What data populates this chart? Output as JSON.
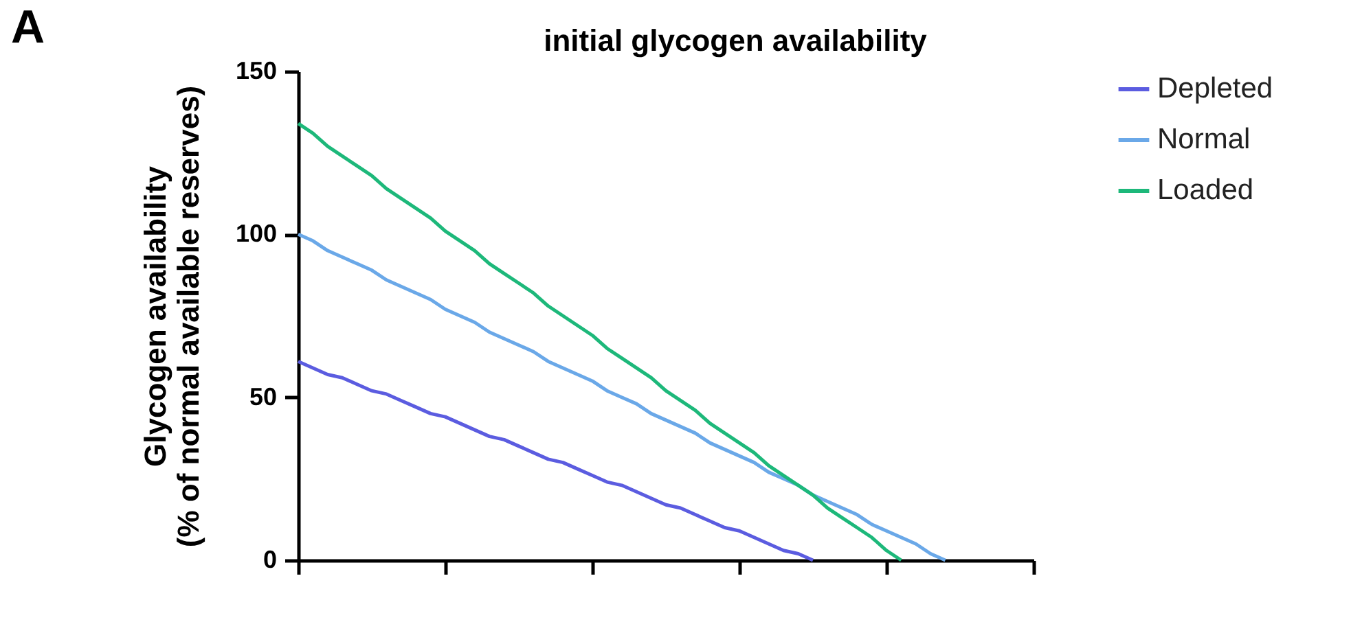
{
  "chart_data": {
    "type": "line",
    "title": "initial glycogen availability",
    "ylabel": "Glycogen availability\n(% of normal available reserves)",
    "annotations": [
      "A"
    ],
    "categories": [
      null,
      null,
      null,
      null,
      null,
      null,
      null,
      null,
      null,
      null,
      null,
      null,
      null,
      null,
      null,
      null,
      null,
      null,
      null,
      null,
      null,
      null,
      null,
      null,
      null,
      null,
      null,
      null,
      null,
      null,
      null,
      null,
      null,
      null,
      null,
      null,
      null,
      null,
      null,
      null,
      null,
      null,
      null,
      null,
      null,
      null,
      null,
      null,
      null,
      null,
      null
    ],
    "ylim": [
      0,
      150
    ],
    "yticks": [
      0,
      50,
      100,
      150
    ],
    "tick_labels": "y",
    "grid": false,
    "legend": "top right",
    "marker": "none",
    "line_style": "solid",
    "series": [
      {
        "name": "Depleted",
        "color": "#5b5ce0",
        "values": [
          61,
          59,
          57,
          56,
          54,
          52,
          51,
          49,
          47,
          45,
          44,
          42,
          40,
          38,
          37,
          35,
          33,
          31,
          30,
          28,
          26,
          24,
          23,
          21,
          19,
          17,
          16,
          14,
          12,
          10,
          9,
          7,
          5,
          3,
          2,
          0,
          null,
          null,
          null,
          null,
          null,
          null,
          null,
          null,
          null,
          null,
          null,
          null,
          null,
          null,
          null
        ]
      },
      {
        "name": "Normal",
        "color": "#6aa8e8",
        "values": [
          100,
          98,
          95,
          93,
          91,
          89,
          86,
          84,
          82,
          80,
          77,
          75,
          73,
          70,
          68,
          66,
          64,
          61,
          59,
          57,
          55,
          52,
          50,
          48,
          45,
          43,
          41,
          39,
          36,
          34,
          32,
          30,
          27,
          25,
          23,
          20,
          18,
          16,
          14,
          11,
          9,
          7,
          5,
          2,
          0,
          null,
          null,
          null,
          null,
          null,
          null
        ]
      },
      {
        "name": "Loaded",
        "color": "#1db87a",
        "values": [
          134,
          131,
          127,
          124,
          121,
          118,
          114,
          111,
          108,
          105,
          101,
          98,
          95,
          91,
          88,
          85,
          82,
          78,
          75,
          72,
          69,
          65,
          62,
          59,
          56,
          52,
          49,
          46,
          42,
          39,
          36,
          33,
          29,
          26,
          23,
          20,
          16,
          13,
          10,
          7,
          3,
          0,
          null,
          null,
          null,
          null,
          null,
          null,
          null,
          null,
          null
        ]
      }
    ]
  }
}
